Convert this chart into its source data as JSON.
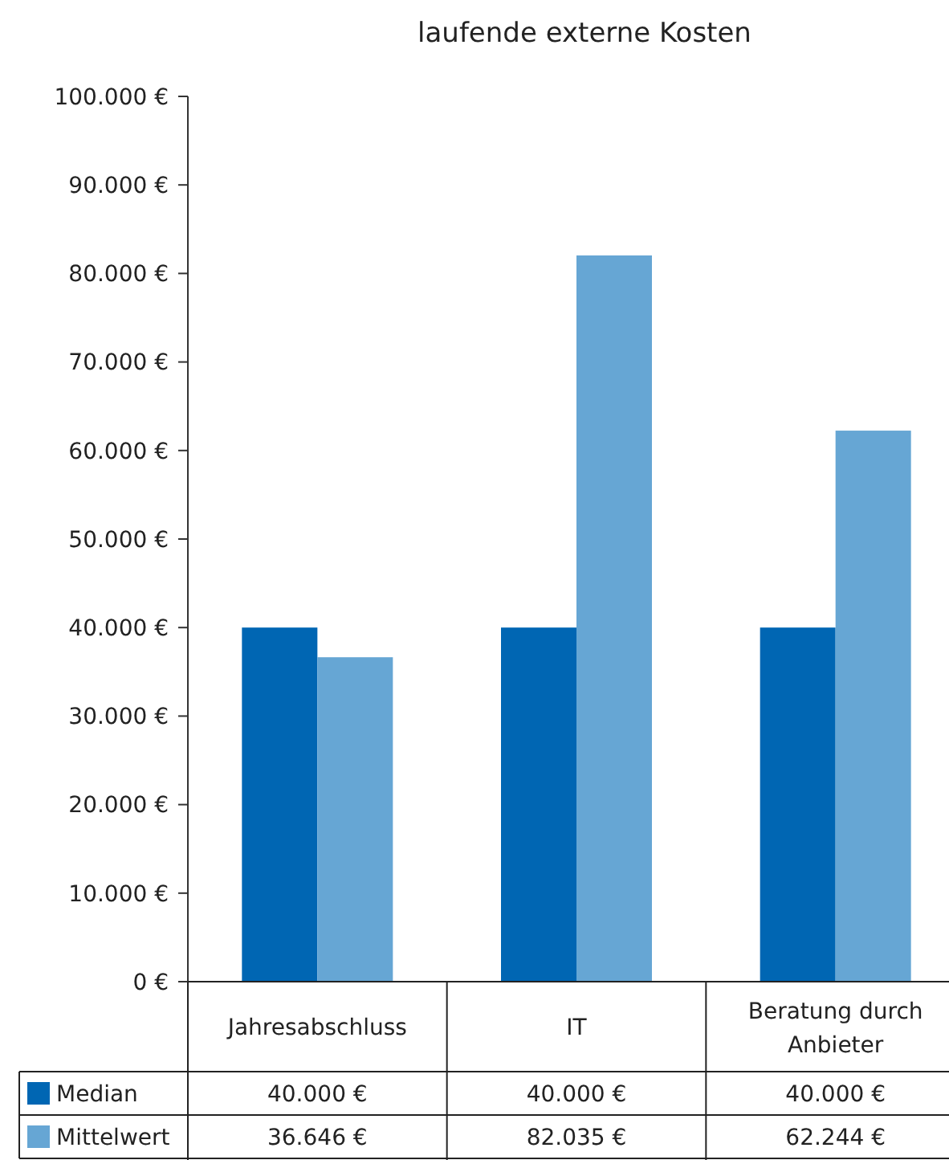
{
  "chart_data": {
    "type": "bar",
    "title": "laufende externe Kosten",
    "categories": [
      "Jahresabschluss",
      "IT",
      "Beratung durch Anbieter"
    ],
    "series": [
      {
        "name": "Median",
        "color": "#0066b3",
        "values": [
          40000,
          40000,
          40000
        ],
        "value_labels": [
          "40.000 €",
          "40.000 €",
          "40.000 €"
        ]
      },
      {
        "name": "Mittelwert",
        "color": "#66a6d4",
        "values": [
          36646,
          82035,
          62244
        ],
        "value_labels": [
          "36.646 €",
          "82.035 €",
          "62.244 €"
        ]
      }
    ],
    "ylim": [
      0,
      100000
    ],
    "yticks": [
      {
        "value": 0,
        "label": "0 €"
      },
      {
        "value": 10000,
        "label": "10.000 €"
      },
      {
        "value": 20000,
        "label": "20.000 €"
      },
      {
        "value": 30000,
        "label": "30.000 €"
      },
      {
        "value": 40000,
        "label": "40.000 €"
      },
      {
        "value": 50000,
        "label": "50.000 €"
      },
      {
        "value": 60000,
        "label": "60.000 €"
      },
      {
        "value": 70000,
        "label": "70.000 €"
      },
      {
        "value": 80000,
        "label": "80.000 €"
      },
      {
        "value": 90000,
        "label": "90.000 €"
      },
      {
        "value": 100000,
        "label": "100.000 €"
      }
    ],
    "grid": false,
    "legend": "bottom"
  }
}
